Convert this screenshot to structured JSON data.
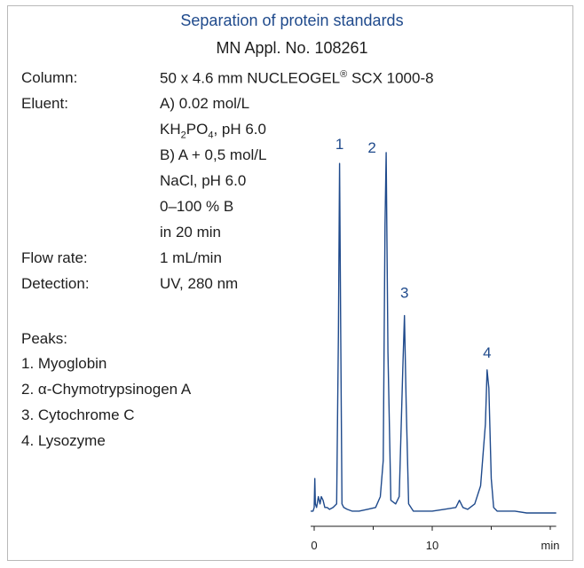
{
  "header": {
    "title": "Separation of protein standards",
    "subtitle": "MN Appl. No. 108261"
  },
  "conditions": {
    "column_label": "Column:",
    "column_value": {
      "pre": "50 x 4.6 mm NUCLEOGEL",
      "sup": "®",
      "post": " SCX 1000-8"
    },
    "eluent_label": "Eluent:",
    "eluent_a": "A) 0.02 mol/L",
    "eluent_a2": {
      "p1": "KH",
      "s1": "2",
      "p2": "PO",
      "s2": "4",
      "p3": ", pH 6.0"
    },
    "eluent_b": "B) A + 0,5 mol/L",
    "eluent_b2": "NaCl, pH 6.0",
    "gradient": "0–100 % B",
    "gradient_time": "in 20 min",
    "flow_label": "Flow rate:",
    "flow_value": "1 mL/min",
    "detection_label": "Detection:",
    "detection_value": "UV, 280 nm"
  },
  "peaks_title": "Peaks:",
  "peaks": [
    "1. Myoglobin",
    "2. α-Chymotrypsinogen A",
    "3. Cytochrome C",
    "4. Lysozyme"
  ],
  "colors": {
    "accent": "#1f4a8c",
    "trace": "#1f4a8c",
    "text": "#1e1e1e"
  },
  "chart_data": {
    "type": "line",
    "xlabel": "min",
    "x_ticks": [
      0,
      10
    ],
    "xlim": [
      -0.3,
      20.5
    ],
    "ylim": [
      0,
      1.0
    ],
    "grid": false,
    "series": [
      {
        "x": [
          -0.3,
          -0.1,
          0.0,
          0.05,
          0.1,
          0.2,
          0.35,
          0.5,
          0.6,
          0.75,
          0.9,
          1.1,
          1.3,
          1.6,
          1.9,
          2.05,
          2.15,
          2.25,
          2.35,
          2.5,
          2.8,
          3.2,
          3.8,
          4.5,
          5.2,
          5.6,
          5.85,
          6.0,
          6.1,
          6.25,
          6.5,
          6.9,
          7.2,
          7.5,
          7.65,
          7.8,
          8.0,
          8.4,
          9.0,
          10.0,
          11.0,
          12.0,
          12.3,
          12.6,
          13.0,
          13.6,
          14.1,
          14.5,
          14.65,
          14.8,
          15.0,
          15.2,
          15.5,
          16.0,
          17.0,
          18.0,
          19.0,
          20.0,
          20.5
        ],
        "y": [
          0.01,
          0.01,
          0.02,
          0.1,
          0.03,
          0.02,
          0.05,
          0.03,
          0.05,
          0.04,
          0.02,
          0.02,
          0.015,
          0.02,
          0.03,
          0.5,
          0.97,
          0.5,
          0.03,
          0.02,
          0.015,
          0.01,
          0.01,
          0.015,
          0.02,
          0.05,
          0.15,
          0.8,
          1.0,
          0.45,
          0.04,
          0.03,
          0.05,
          0.4,
          0.55,
          0.3,
          0.03,
          0.01,
          0.01,
          0.01,
          0.015,
          0.02,
          0.04,
          0.02,
          0.015,
          0.03,
          0.08,
          0.25,
          0.4,
          0.35,
          0.1,
          0.02,
          0.01,
          0.01,
          0.01,
          0.005,
          0.005,
          0.005,
          0.005
        ]
      }
    ],
    "peak_labels": [
      {
        "label": "1",
        "x": 2.15,
        "y": 0.97
      },
      {
        "label": "2",
        "x": 6.1,
        "y": 1.0
      },
      {
        "label": "3",
        "x": 7.65,
        "y": 0.55
      },
      {
        "label": "4",
        "x": 14.65,
        "y": 0.4
      }
    ]
  }
}
